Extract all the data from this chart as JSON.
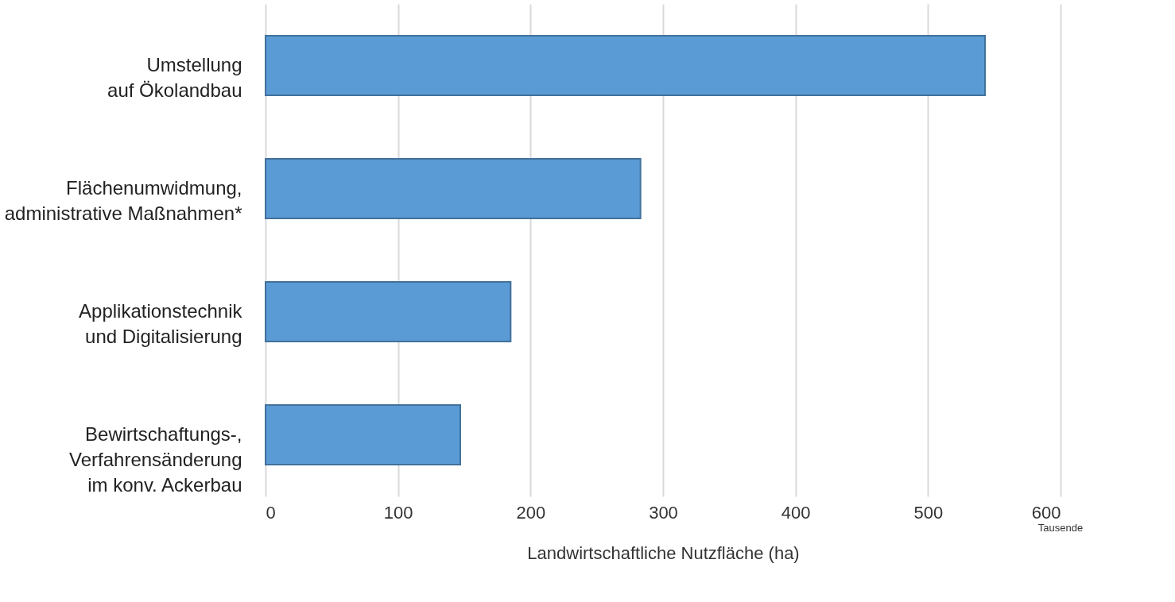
{
  "chart_data": {
    "type": "bar",
    "orientation": "horizontal",
    "categories": [
      "Umstellung\nauf Ökolandbau",
      "Flächenumwidmung,\nadministrative Maßnahmen*",
      "Applikationstechnik\nund Digitalisierung",
      "Bewirtschaftungs-,\nVerfahrensänderung\nim konv. Ackerbau"
    ],
    "values": [
      543,
      283,
      185,
      147
    ],
    "color": "#5b9bd5",
    "xlabel": "Landwirtschaftliche Nutzfläche (ha)",
    "annotations": [
      "Tausende"
    ],
    "xlim": [
      0,
      600
    ],
    "xticks": [
      0,
      100,
      200,
      300,
      400,
      500,
      600
    ],
    "grid": "x"
  }
}
